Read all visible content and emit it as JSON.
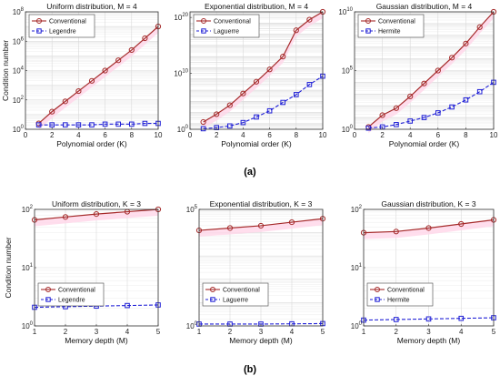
{
  "panel_labels": [
    "(a)",
    "(b)"
  ],
  "colors": {
    "conventional": "#a52a2a",
    "orthogonal": "#1f1fd6",
    "pink_fill": "#ffd6e8",
    "grid": "#d9d9d9"
  },
  "chart_data": [
    {
      "type": "line",
      "title": "Uniform distribution, M = 4",
      "xlabel": "Polynomial order (K)",
      "ylabel": "Condition number",
      "yscale": "log",
      "xlim": [
        0,
        10
      ],
      "ylim_exp": [
        0,
        8
      ],
      "xticks": [
        0,
        2,
        4,
        6,
        8,
        10
      ],
      "yticks": [
        0,
        2,
        4,
        6,
        8
      ],
      "grid": true,
      "legend_position": "top-left",
      "x": [
        1,
        2,
        3,
        4,
        5,
        6,
        7,
        8,
        9,
        10
      ],
      "series": [
        {
          "name": "Conventional",
          "key": "conventional",
          "log10_values": [
            0.4,
            1.2,
            1.9,
            2.6,
            3.3,
            4.0,
            4.7,
            5.4,
            6.2,
            7.0
          ]
        },
        {
          "name": "Legendre",
          "key": "orthogonal",
          "log10_values": [
            0.3,
            0.3,
            0.3,
            0.3,
            0.3,
            0.35,
            0.35,
            0.35,
            0.4,
            0.4
          ]
        }
      ]
    },
    {
      "type": "line",
      "title": "Exponential distribution, M = 4",
      "xlabel": "Polynomial order (K)",
      "ylabel": "",
      "yscale": "log",
      "xlim": [
        0,
        10
      ],
      "ylim_exp": [
        0,
        21
      ],
      "xticks": [
        0,
        2,
        4,
        6,
        8,
        10
      ],
      "yticks": [
        0,
        10,
        20
      ],
      "grid": true,
      "legend_position": "top-left",
      "x": [
        1,
        2,
        3,
        4,
        5,
        6,
        7,
        8,
        9,
        10
      ],
      "series": [
        {
          "name": "Conventional",
          "key": "conventional",
          "log10_values": [
            1.3,
            2.7,
            4.3,
            6.4,
            8.5,
            10.7,
            13.0,
            17.7,
            19.6,
            21.0
          ]
        },
        {
          "name": "Laguerre",
          "key": "orthogonal",
          "log10_values": [
            0.1,
            0.3,
            0.6,
            1.2,
            2.2,
            3.3,
            4.8,
            6.2,
            8.0,
            9.5
          ]
        }
      ]
    },
    {
      "type": "line",
      "title": "Gaussian distribution, M = 4",
      "xlabel": "Polynomial order (K)",
      "ylabel": "",
      "yscale": "log",
      "xlim": [
        0,
        10
      ],
      "ylim_exp": [
        0,
        10
      ],
      "xticks": [
        0,
        2,
        4,
        6,
        8,
        10
      ],
      "yticks": [
        0,
        5,
        10
      ],
      "grid": true,
      "legend_position": "top-left",
      "x": [
        1,
        2,
        3,
        4,
        5,
        6,
        7,
        8,
        9,
        10
      ],
      "series": [
        {
          "name": "Conventional",
          "key": "conventional",
          "log10_values": [
            0.2,
            1.2,
            1.8,
            2.8,
            3.9,
            5.0,
            6.1,
            7.3,
            8.7,
            10.0
          ]
        },
        {
          "name": "Hermite",
          "key": "orthogonal",
          "log10_values": [
            0.1,
            0.2,
            0.4,
            0.7,
            1.0,
            1.4,
            1.9,
            2.5,
            3.2,
            4.0
          ]
        }
      ]
    },
    {
      "type": "line",
      "title": "Uniform distribution, K = 3",
      "xlabel": "Memory depth (M)",
      "ylabel": "Condition number",
      "yscale": "log",
      "xlim": [
        1,
        5
      ],
      "ylim_exp": [
        0,
        2
      ],
      "xticks": [
        1,
        2,
        3,
        4,
        5
      ],
      "yticks": [
        0,
        1,
        2
      ],
      "grid": true,
      "legend_position": "bottom-left",
      "x": [
        1,
        2,
        3,
        4,
        5
      ],
      "series": [
        {
          "name": "Conventional",
          "key": "conventional",
          "log10_values": [
            1.82,
            1.87,
            1.92,
            1.96,
            2.0
          ]
        },
        {
          "name": "Legendre",
          "key": "orthogonal",
          "log10_values": [
            0.32,
            0.33,
            0.34,
            0.35,
            0.36
          ]
        }
      ]
    },
    {
      "type": "line",
      "title": "Exponential distribution, K = 3",
      "xlabel": "Memory depth (M)",
      "ylabel": "",
      "yscale": "log",
      "xlim": [
        1,
        5
      ],
      "ylim_exp": [
        0,
        5
      ],
      "xticks": [
        1,
        2,
        3,
        4,
        5
      ],
      "yticks": [
        0,
        5
      ],
      "grid": true,
      "legend_position": "bottom-left",
      "x": [
        1,
        2,
        3,
        4,
        5
      ],
      "series": [
        {
          "name": "Conventional",
          "key": "conventional",
          "log10_values": [
            4.1,
            4.2,
            4.3,
            4.45,
            4.6
          ]
        },
        {
          "name": "Laguerre",
          "key": "orthogonal",
          "log10_values": [
            0.08,
            0.08,
            0.08,
            0.09,
            0.1
          ]
        }
      ]
    },
    {
      "type": "line",
      "title": "Gaussian distribution, K = 3",
      "xlabel": "Memory depth (M)",
      "ylabel": "",
      "yscale": "log",
      "xlim": [
        1,
        5
      ],
      "ylim_exp": [
        0,
        2
      ],
      "xticks": [
        1,
        2,
        3,
        4,
        5
      ],
      "yticks": [
        0,
        1,
        2
      ],
      "grid": true,
      "legend_position": "bottom-left",
      "x": [
        1,
        2,
        3,
        4,
        5
      ],
      "series": [
        {
          "name": "Conventional",
          "key": "conventional",
          "log10_values": [
            1.6,
            1.62,
            1.68,
            1.75,
            1.82
          ]
        },
        {
          "name": "Hermite",
          "key": "orthogonal",
          "log10_values": [
            0.1,
            0.11,
            0.12,
            0.13,
            0.14
          ]
        }
      ]
    }
  ]
}
